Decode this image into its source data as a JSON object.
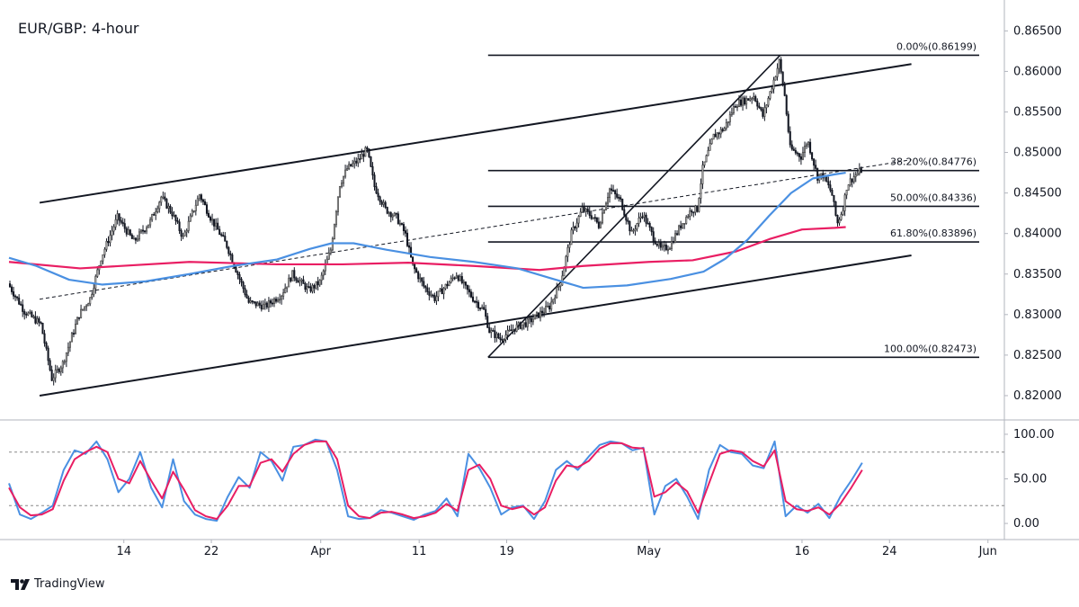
{
  "chart_data": {
    "type": "line",
    "title": "EUR/GBP: 4-hour",
    "price_axis": {
      "ticks": [
        "0.86500",
        "0.86000",
        "0.85500",
        "0.85000",
        "0.84500",
        "0.84000",
        "0.83500",
        "0.83000",
        "0.82500",
        "0.82000"
      ],
      "ylim": [
        0.817,
        0.8677
      ]
    },
    "stoch_axis": {
      "ticks": [
        "100.00",
        "50.00",
        "0.00"
      ],
      "ylim": [
        -8,
        108
      ],
      "levels": [
        80,
        20
      ]
    },
    "time_axis": {
      "labels": [
        {
          "label": "14",
          "day": 14
        },
        {
          "label": "22",
          "day": 22
        },
        {
          "label": "Apr",
          "day": 32
        },
        {
          "label": "11",
          "day": 41
        },
        {
          "label": "19",
          "day": 49
        },
        {
          "label": "May",
          "day": 62
        },
        {
          "label": "16",
          "day": 76
        },
        {
          "label": "24",
          "day": 84
        },
        {
          "label": "Jun",
          "day": 93
        }
      ],
      "xlim": [
        3.5,
        94.5
      ],
      "unit": "day"
    },
    "fibonacci": [
      {
        "label": "0.00%(0.86199)",
        "price": 0.86199
      },
      {
        "label": "38.20%(0.84776)",
        "price": 0.84776
      },
      {
        "label": "50.00%(0.84336)",
        "price": 0.84336
      },
      {
        "label": "61.80%(0.83896)",
        "price": 0.83896
      },
      {
        "label": "100.00%(0.82473)",
        "price": 0.82473
      }
    ],
    "fib_range_day": [
      47.3,
      92.2
    ],
    "channel": {
      "upper": [
        [
          6.3,
          0.8438
        ],
        [
          86.0,
          0.8609
        ]
      ],
      "lower": [
        [
          6.3,
          0.82
        ],
        [
          86.0,
          0.8373
        ]
      ],
      "mid": [
        [
          6.3,
          0.8319
        ],
        [
          86.0,
          0.8491
        ]
      ]
    },
    "trend_line": [
      [
        47.3,
        0.82473
      ],
      [
        74.0,
        0.86199
      ]
    ],
    "sma_100": {
      "name": "",
      "color": "#4a90e2",
      "points": [
        [
          3.5,
          0.837
        ],
        [
          6,
          0.836
        ],
        [
          9,
          0.8343
        ],
        [
          12,
          0.8337
        ],
        [
          16,
          0.8341
        ],
        [
          20,
          0.835
        ],
        [
          24,
          0.836
        ],
        [
          28,
          0.8368
        ],
        [
          31,
          0.8381
        ],
        [
          33,
          0.8388
        ],
        [
          35,
          0.8388
        ],
        [
          38,
          0.838
        ],
        [
          42,
          0.8371
        ],
        [
          46,
          0.8365
        ],
        [
          50,
          0.8357
        ],
        [
          53,
          0.8345
        ],
        [
          56,
          0.8333
        ],
        [
          60,
          0.8336
        ],
        [
          64,
          0.8344
        ],
        [
          67,
          0.8353
        ],
        [
          69,
          0.8369
        ],
        [
          71,
          0.8392
        ],
        [
          73,
          0.8422
        ],
        [
          75,
          0.845
        ],
        [
          77,
          0.8468
        ],
        [
          79,
          0.8473
        ],
        [
          80,
          0.8475
        ]
      ]
    },
    "sma_200": {
      "name": "",
      "color": "#e91e63",
      "points": [
        [
          3.5,
          0.8365
        ],
        [
          10,
          0.8357
        ],
        [
          20,
          0.8365
        ],
        [
          28,
          0.8362
        ],
        [
          34,
          0.8362
        ],
        [
          40,
          0.8364
        ],
        [
          46,
          0.836
        ],
        [
          52,
          0.8355
        ],
        [
          56,
          0.836
        ],
        [
          62,
          0.8365
        ],
        [
          66,
          0.8367
        ],
        [
          70,
          0.8378
        ],
        [
          73,
          0.8393
        ],
        [
          76,
          0.8405
        ],
        [
          79,
          0.8407
        ],
        [
          80,
          0.8408
        ]
      ]
    },
    "price_path": [
      [
        3.5,
        0.8338
      ],
      [
        5,
        0.8304
      ],
      [
        6.5,
        0.8288
      ],
      [
        7.5,
        0.8221
      ],
      [
        8.5,
        0.824
      ],
      [
        10,
        0.83
      ],
      [
        11,
        0.832
      ],
      [
        12,
        0.837
      ],
      [
        13.5,
        0.842
      ],
      [
        15,
        0.839
      ],
      [
        16.5,
        0.8415
      ],
      [
        17.5,
        0.8445
      ],
      [
        18.5,
        0.8425
      ],
      [
        19.5,
        0.8395
      ],
      [
        21,
        0.8448
      ],
      [
        22,
        0.842
      ],
      [
        23.5,
        0.8385
      ],
      [
        24.5,
        0.835
      ],
      [
        25.5,
        0.8315
      ],
      [
        27,
        0.831
      ],
      [
        28.5,
        0.8325
      ],
      [
        29.5,
        0.835
      ],
      [
        31,
        0.833
      ],
      [
        32,
        0.834
      ],
      [
        33,
        0.838
      ],
      [
        33.8,
        0.846
      ],
      [
        34.5,
        0.848
      ],
      [
        35.5,
        0.849
      ],
      [
        36.3,
        0.8504
      ],
      [
        37,
        0.8458
      ],
      [
        38,
        0.843
      ],
      [
        39,
        0.842
      ],
      [
        39.8,
        0.84
      ],
      [
        40.5,
        0.836
      ],
      [
        41.5,
        0.8335
      ],
      [
        42.5,
        0.832
      ],
      [
        43.5,
        0.8335
      ],
      [
        44.5,
        0.835
      ],
      [
        45.2,
        0.8335
      ],
      [
        46,
        0.832
      ],
      [
        47,
        0.8305
      ],
      [
        47.5,
        0.828
      ],
      [
        48.5,
        0.827
      ],
      [
        50,
        0.8285
      ],
      [
        51,
        0.829
      ],
      [
        52,
        0.83
      ],
      [
        53,
        0.831
      ],
      [
        54,
        0.834
      ],
      [
        55,
        0.84
      ],
      [
        56,
        0.843
      ],
      [
        57,
        0.842
      ],
      [
        57.5,
        0.841
      ],
      [
        58.5,
        0.8455
      ],
      [
        59.5,
        0.844
      ],
      [
        60.5,
        0.84
      ],
      [
        61.5,
        0.8425
      ],
      [
        62.5,
        0.8395
      ],
      [
        63.2,
        0.838
      ],
      [
        64,
        0.8385
      ],
      [
        65,
        0.841
      ],
      [
        66,
        0.843
      ],
      [
        66.5,
        0.843
      ],
      [
        67,
        0.848
      ],
      [
        68,
        0.852
      ],
      [
        69,
        0.853
      ],
      [
        70,
        0.856
      ],
      [
        71,
        0.8565
      ],
      [
        71.7,
        0.857
      ],
      [
        72.5,
        0.8545
      ],
      [
        73.3,
        0.858
      ],
      [
        74,
        0.8612
      ],
      [
        74.5,
        0.857
      ],
      [
        75,
        0.8505
      ],
      [
        76,
        0.8495
      ],
      [
        76.6,
        0.8515
      ],
      [
        77,
        0.8495
      ],
      [
        77.5,
        0.847
      ],
      [
        78,
        0.8472
      ],
      [
        78.8,
        0.845
      ],
      [
        79.3,
        0.8412
      ],
      [
        79.8,
        0.843
      ],
      [
        80.2,
        0.846
      ],
      [
        80.8,
        0.847
      ],
      [
        81.5,
        0.8478
      ]
    ],
    "stochastic": {
      "k_color": "#4a90e2",
      "d_color": "#e91e63",
      "k": [
        [
          3.5,
          45
        ],
        [
          4.5,
          10
        ],
        [
          5.5,
          5
        ],
        [
          6.5,
          12
        ],
        [
          7.5,
          20
        ],
        [
          8.5,
          60
        ],
        [
          9.5,
          82
        ],
        [
          10.5,
          78
        ],
        [
          11.5,
          92
        ],
        [
          12.5,
          72
        ],
        [
          13.5,
          35
        ],
        [
          14.5,
          50
        ],
        [
          15.5,
          80
        ],
        [
          16.5,
          40
        ],
        [
          17.5,
          18
        ],
        [
          18.5,
          72
        ],
        [
          19.5,
          25
        ],
        [
          20.5,
          10
        ],
        [
          21.5,
          5
        ],
        [
          22.5,
          3
        ],
        [
          23.5,
          30
        ],
        [
          24.5,
          52
        ],
        [
          25.5,
          40
        ],
        [
          26.5,
          80
        ],
        [
          27.5,
          70
        ],
        [
          28.5,
          48
        ],
        [
          29.5,
          86
        ],
        [
          30.5,
          88
        ],
        [
          31.5,
          94
        ],
        [
          32.5,
          92
        ],
        [
          33.5,
          60
        ],
        [
          34.5,
          8
        ],
        [
          35.5,
          5
        ],
        [
          36.5,
          6
        ],
        [
          37.5,
          15
        ],
        [
          38.5,
          12
        ],
        [
          39.5,
          8
        ],
        [
          40.5,
          4
        ],
        [
          41.5,
          10
        ],
        [
          42.5,
          14
        ],
        [
          43.5,
          28
        ],
        [
          44.5,
          8
        ],
        [
          45.5,
          78
        ],
        [
          46.5,
          62
        ],
        [
          47.5,
          40
        ],
        [
          48.5,
          10
        ],
        [
          49.5,
          18
        ],
        [
          50.5,
          20
        ],
        [
          51.5,
          5
        ],
        [
          52.5,
          25
        ],
        [
          53.5,
          60
        ],
        [
          54.5,
          70
        ],
        [
          55.5,
          60
        ],
        [
          56.5,
          75
        ],
        [
          57.5,
          88
        ],
        [
          58.5,
          92
        ],
        [
          59.5,
          90
        ],
        [
          60.5,
          82
        ],
        [
          61.5,
          85
        ],
        [
          62.5,
          10
        ],
        [
          63.5,
          42
        ],
        [
          64.5,
          50
        ],
        [
          65.5,
          30
        ],
        [
          66.5,
          5
        ],
        [
          67.5,
          60
        ],
        [
          68.5,
          88
        ],
        [
          69.5,
          80
        ],
        [
          70.5,
          78
        ],
        [
          71.5,
          65
        ],
        [
          72.5,
          62
        ],
        [
          73.5,
          92
        ],
        [
          74.5,
          8
        ],
        [
          75.5,
          20
        ],
        [
          76.5,
          12
        ],
        [
          77.5,
          22
        ],
        [
          78.5,
          6
        ],
        [
          79.5,
          30
        ],
        [
          80.5,
          48
        ],
        [
          81.5,
          68
        ]
      ],
      "d": [
        [
          3.5,
          40
        ],
        [
          4.5,
          18
        ],
        [
          5.5,
          9
        ],
        [
          6.5,
          10
        ],
        [
          7.5,
          16
        ],
        [
          8.5,
          48
        ],
        [
          9.5,
          72
        ],
        [
          10.5,
          80
        ],
        [
          11.5,
          86
        ],
        [
          12.5,
          80
        ],
        [
          13.5,
          50
        ],
        [
          14.5,
          45
        ],
        [
          15.5,
          70
        ],
        [
          16.5,
          48
        ],
        [
          17.5,
          28
        ],
        [
          18.5,
          58
        ],
        [
          19.5,
          38
        ],
        [
          20.5,
          15
        ],
        [
          21.5,
          8
        ],
        [
          22.5,
          5
        ],
        [
          23.5,
          20
        ],
        [
          24.5,
          42
        ],
        [
          25.5,
          42
        ],
        [
          26.5,
          68
        ],
        [
          27.5,
          72
        ],
        [
          28.5,
          58
        ],
        [
          29.5,
          78
        ],
        [
          30.5,
          88
        ],
        [
          31.5,
          92
        ],
        [
          32.5,
          92
        ],
        [
          33.5,
          72
        ],
        [
          34.5,
          20
        ],
        [
          35.5,
          8
        ],
        [
          36.5,
          6
        ],
        [
          37.5,
          12
        ],
        [
          38.5,
          13
        ],
        [
          39.5,
          10
        ],
        [
          40.5,
          6
        ],
        [
          41.5,
          8
        ],
        [
          42.5,
          12
        ],
        [
          43.5,
          22
        ],
        [
          44.5,
          14
        ],
        [
          45.5,
          60
        ],
        [
          46.5,
          66
        ],
        [
          47.5,
          50
        ],
        [
          48.5,
          20
        ],
        [
          49.5,
          16
        ],
        [
          50.5,
          19
        ],
        [
          51.5,
          10
        ],
        [
          52.5,
          18
        ],
        [
          53.5,
          48
        ],
        [
          54.5,
          65
        ],
        [
          55.5,
          63
        ],
        [
          56.5,
          70
        ],
        [
          57.5,
          84
        ],
        [
          58.5,
          90
        ],
        [
          59.5,
          90
        ],
        [
          60.5,
          85
        ],
        [
          61.5,
          84
        ],
        [
          62.5,
          30
        ],
        [
          63.5,
          35
        ],
        [
          64.5,
          46
        ],
        [
          65.5,
          36
        ],
        [
          66.5,
          12
        ],
        [
          67.5,
          45
        ],
        [
          68.5,
          78
        ],
        [
          69.5,
          82
        ],
        [
          70.5,
          80
        ],
        [
          71.5,
          70
        ],
        [
          72.5,
          64
        ],
        [
          73.5,
          82
        ],
        [
          74.5,
          25
        ],
        [
          75.5,
          16
        ],
        [
          76.5,
          14
        ],
        [
          77.5,
          18
        ],
        [
          78.5,
          10
        ],
        [
          79.5,
          22
        ],
        [
          80.5,
          40
        ],
        [
          81.5,
          60
        ]
      ]
    }
  },
  "footer": {
    "brand": "TradingView"
  }
}
